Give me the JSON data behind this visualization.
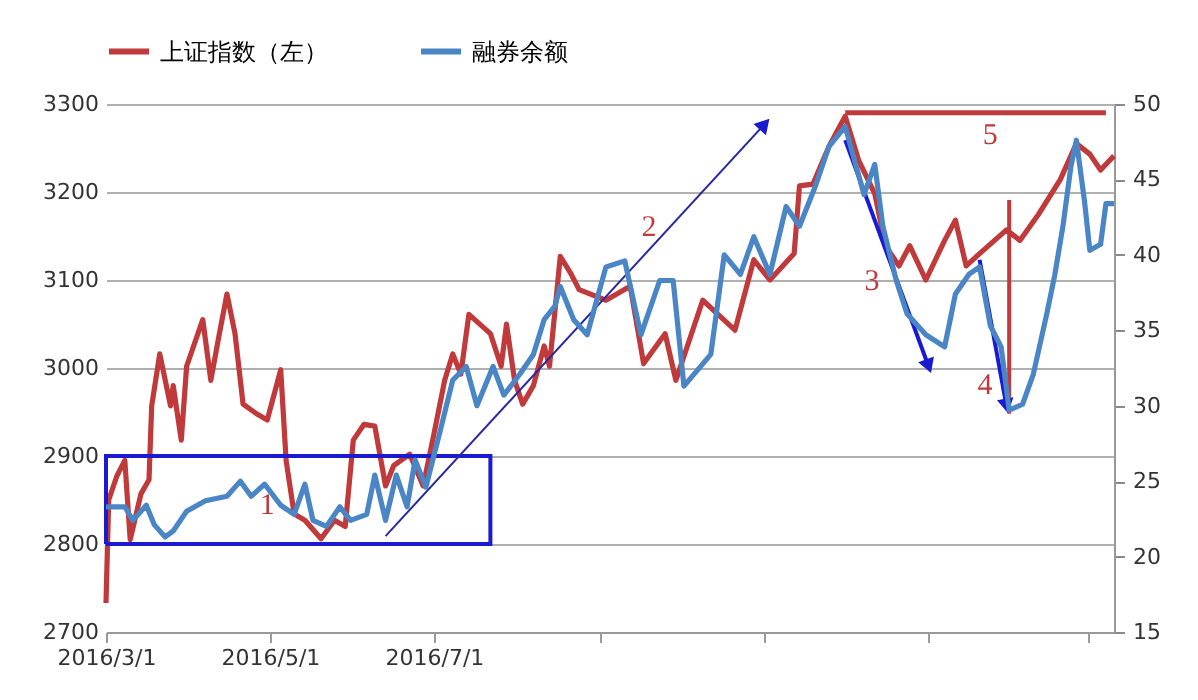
{
  "chart_data": {
    "type": "line",
    "xlim": [
      "2016-03-01",
      "2017-03-11"
    ],
    "xticks": [
      {
        "value": "2016-03-01",
        "label": "2016/3/1"
      },
      {
        "value": "2016-05-01",
        "label": "2016/5/1"
      },
      {
        "value": "2016-07-01",
        "label": "2016/7/1"
      },
      {
        "value": "2016-09-01",
        "label": null
      },
      {
        "value": "2016-11-01",
        "label": null
      },
      {
        "value": "2017-01-01",
        "label": null
      },
      {
        "value": "2017-03-01",
        "label": null
      }
    ],
    "ylim": [
      2700,
      3300
    ],
    "yticks": [
      2700,
      2800,
      2900,
      3000,
      3100,
      3200,
      3300
    ],
    "y2lim": [
      15,
      50
    ],
    "y2ticks": [
      15,
      20,
      25,
      30,
      35,
      40,
      45,
      50
    ],
    "grid": "y",
    "legend": "top",
    "marker": "none",
    "line_style": "solid",
    "series": [
      {
        "name": "上证指数（左）",
        "color": "#c0393b",
        "x": [
          "2016-03-01",
          "2016-03-02",
          "2016-03-05",
          "2016-03-08",
          "2016-03-10",
          "2016-03-14",
          "2016-03-17",
          "2016-03-18",
          "2016-03-21",
          "2016-03-25",
          "2016-03-26",
          "2016-03-29",
          "2016-03-31",
          "2016-04-06",
          "2016-04-09",
          "2016-04-12",
          "2016-04-15",
          "2016-04-18",
          "2016-04-21",
          "2016-04-26",
          "2016-04-30",
          "2016-05-05",
          "2016-05-07",
          "2016-05-10",
          "2016-05-14",
          "2016-05-20",
          "2016-05-25",
          "2016-05-29",
          "2016-06-01",
          "2016-06-05",
          "2016-06-09",
          "2016-06-13",
          "2016-06-16",
          "2016-06-22",
          "2016-06-27",
          "2016-07-01",
          "2016-07-05",
          "2016-07-08",
          "2016-07-11",
          "2016-07-14",
          "2016-07-22",
          "2016-07-26",
          "2016-07-28",
          "2016-07-31",
          "2016-08-03",
          "2016-08-07",
          "2016-08-11",
          "2016-08-13",
          "2016-08-17",
          "2016-08-21",
          "2016-08-24",
          "2016-09-03",
          "2016-09-12",
          "2016-09-17",
          "2016-09-25",
          "2016-09-29",
          "2016-10-09",
          "2016-10-21",
          "2016-10-28",
          "2016-11-03",
          "2016-11-12",
          "2016-11-14",
          "2016-11-19",
          "2016-11-25",
          "2016-12-01",
          "2016-12-06",
          "2016-12-12",
          "2016-12-16",
          "2016-12-21",
          "2016-12-25",
          "2016-12-31",
          "2017-01-07",
          "2017-01-11",
          "2017-01-15",
          "2017-01-20",
          "2017-01-30",
          "2017-02-04",
          "2017-02-11",
          "2017-02-19",
          "2017-02-25",
          "2017-03-02",
          "2017-03-06",
          "2017-03-11"
        ],
        "values": [
          2733,
          2850,
          2877,
          2895,
          2805,
          2857,
          2873,
          2957,
          3016,
          2957,
          2980,
          2918,
          3002,
          3055,
          2986,
          3036,
          3084,
          3039,
          2959,
          2948,
          2941,
          2998,
          2895,
          2834,
          2827,
          2806,
          2827,
          2820,
          2918,
          2936,
          2934,
          2866,
          2889,
          2902,
          2866,
          2925,
          2986,
          3016,
          2993,
          3061,
          3039,
          3002,
          3050,
          2986,
          2959,
          2980,
          3025,
          3002,
          3127,
          3107,
          3089,
          3077,
          3093,
          3005,
          3039,
          2986,
          3077,
          3043,
          3123,
          3100,
          3130,
          3207,
          3209,
          3252,
          3286,
          3236,
          3198,
          3139,
          3116,
          3139,
          3100,
          3145,
          3168,
          3116,
          3130,
          3157,
          3145,
          3175,
          3214,
          3255,
          3243,
          3225,
          3241
        ]
      },
      {
        "name": "融券余额",
        "color": "#4a86c5",
        "axis": "y2",
        "x": [
          "2016-03-01",
          "2016-03-08",
          "2016-03-11",
          "2016-03-16",
          "2016-03-19",
          "2016-03-23",
          "2016-03-26",
          "2016-03-31",
          "2016-04-07",
          "2016-04-15",
          "2016-04-20",
          "2016-04-24",
          "2016-04-29",
          "2016-05-05",
          "2016-05-10",
          "2016-05-14",
          "2016-05-17",
          "2016-05-22",
          "2016-05-27",
          "2016-05-31",
          "2016-06-06",
          "2016-06-09",
          "2016-06-13",
          "2016-06-17",
          "2016-06-21",
          "2016-06-24",
          "2016-06-28",
          "2016-07-03",
          "2016-07-08",
          "2016-07-13",
          "2016-07-17",
          "2016-07-23",
          "2016-07-27",
          "2016-08-02",
          "2016-08-07",
          "2016-08-11",
          "2016-08-15",
          "2016-08-17",
          "2016-08-22",
          "2016-08-27",
          "2016-09-03",
          "2016-09-10",
          "2016-09-16",
          "2016-09-23",
          "2016-09-28",
          "2016-10-02",
          "2016-10-12",
          "2016-10-17",
          "2016-10-23",
          "2016-10-28",
          "2016-11-03",
          "2016-11-09",
          "2016-11-14",
          "2016-11-20",
          "2016-11-25",
          "2016-12-01",
          "2016-12-08",
          "2016-12-12",
          "2016-12-15",
          "2016-12-20",
          "2016-12-24",
          "2016-12-31",
          "2017-01-07",
          "2017-01-11",
          "2017-01-16",
          "2017-01-20",
          "2017-01-24",
          "2017-01-28",
          "2017-01-31",
          "2017-02-05",
          "2017-02-09",
          "2017-02-14",
          "2017-02-17",
          "2017-02-20",
          "2017-02-23",
          "2017-02-25",
          "2017-02-28",
          "2017-03-02",
          "2017-03-06",
          "2017-03-08",
          "2017-03-11"
        ],
        "values": [
          23.3,
          23.3,
          22.4,
          23.4,
          22.1,
          21.3,
          21.7,
          23.0,
          23.7,
          24.0,
          25.0,
          24.0,
          24.8,
          23.4,
          22.8,
          24.8,
          22.4,
          22.0,
          23.3,
          22.4,
          22.8,
          25.4,
          22.4,
          25.4,
          23.3,
          26.4,
          24.6,
          28.1,
          31.7,
          32.6,
          30.0,
          32.6,
          30.7,
          32.1,
          33.4,
          35.7,
          36.6,
          37.9,
          35.7,
          34.7,
          39.2,
          39.6,
          34.7,
          38.3,
          38.3,
          31.3,
          33.4,
          40.0,
          38.7,
          41.2,
          38.7,
          43.2,
          41.9,
          44.6,
          47.2,
          48.5,
          44.0,
          46.0,
          41.9,
          38.3,
          36.1,
          34.7,
          33.9,
          37.4,
          38.7,
          39.2,
          35.3,
          33.9,
          29.7,
          30.1,
          32.1,
          36.1,
          38.7,
          41.9,
          45.9,
          47.6,
          43.6,
          40.3,
          40.7,
          43.4,
          43.4
        ]
      }
    ],
    "ref_lines": [
      {
        "axis": "y",
        "value": 3290,
        "color": "#c0393b"
      }
    ],
    "annotations": [
      "1",
      "2",
      "3",
      "4",
      "5"
    ]
  }
}
